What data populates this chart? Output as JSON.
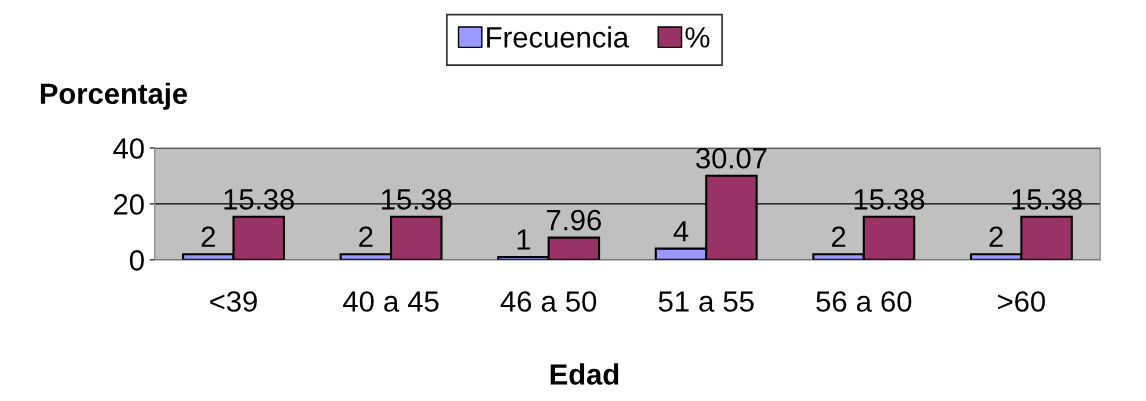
{
  "chart_data": {
    "type": "bar",
    "xlabel": "Edad",
    "ylabel": "Porcentaje",
    "categories": [
      "<39",
      "40 a 45",
      "46 a 50",
      "51 a 55",
      "56 a 60",
      ">60"
    ],
    "series": [
      {
        "name": "Frecuencia",
        "color": "#9999ff",
        "values": [
          2,
          2,
          1,
          4,
          2,
          2
        ]
      },
      {
        "name": "%",
        "color": "#993366",
        "values": [
          15.38,
          15.38,
          7.96,
          30.07,
          15.38,
          15.38
        ]
      }
    ],
    "ylim": [
      0,
      40
    ],
    "yticks": [
      0,
      20,
      40
    ],
    "grid": "y",
    "legend": "top",
    "data_labels": true
  }
}
